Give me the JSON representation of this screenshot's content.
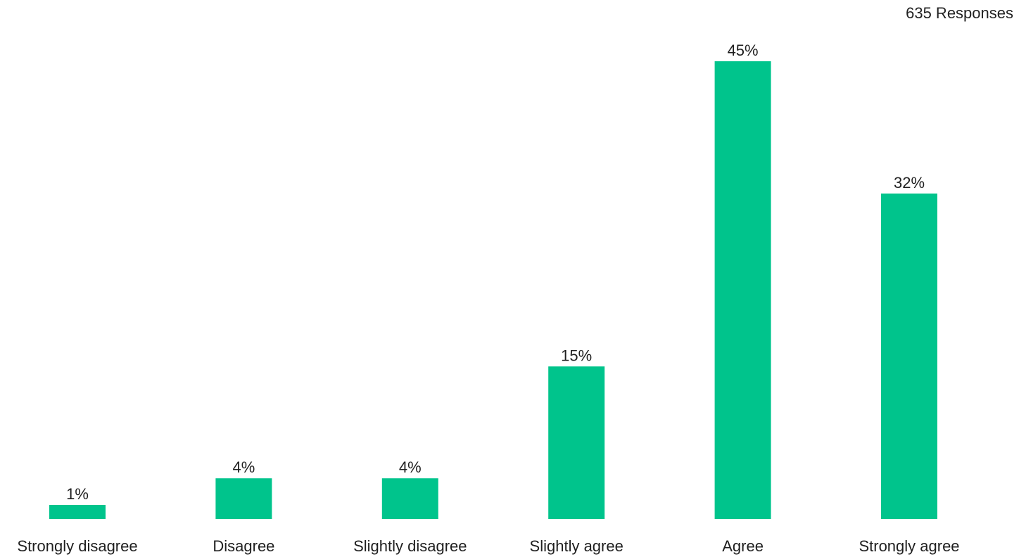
{
  "header": {
    "responses": "635 Responses"
  },
  "chart_data": {
    "type": "bar",
    "categories": [
      "Strongly disagree",
      "Disagree",
      "Slightly disagree",
      "Slightly agree",
      "Agree",
      "Strongly agree"
    ],
    "values": [
      1,
      4,
      4,
      15,
      45,
      32
    ],
    "value_labels": [
      "1%",
      "4%",
      "4%",
      "15%",
      "45%",
      "32%"
    ],
    "title": "",
    "xlabel": "",
    "ylabel": "",
    "ylim": [
      0,
      45
    ],
    "grid": false,
    "bar_color": "#00C48C"
  }
}
